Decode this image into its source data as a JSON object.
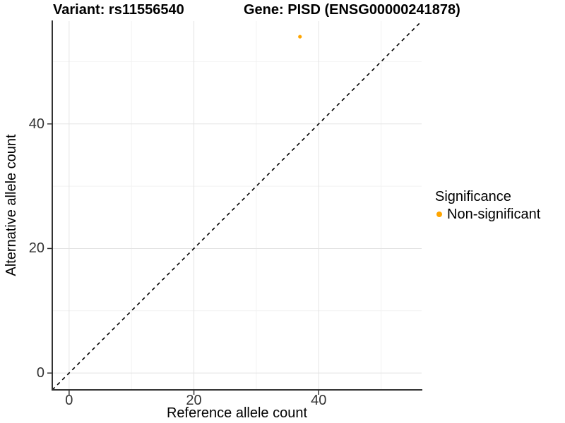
{
  "titles": {
    "left": "Variant: rs11556540",
    "right": "Gene: PISD (ENSG00000241878)"
  },
  "chart_data": {
    "type": "scatter",
    "xlabel": "Reference allele count",
    "ylabel": "Alternative allele count",
    "xlim": [
      -2.7,
      56.5
    ],
    "ylim": [
      -2.7,
      56.5
    ],
    "xticks": [
      0,
      20,
      40
    ],
    "yticks": [
      0,
      20,
      40
    ],
    "minor_xticks": [
      10,
      30,
      50
    ],
    "minor_yticks": [
      10,
      30,
      50
    ],
    "grid": "major+minor",
    "series": [
      {
        "name": "Non-significant",
        "color": "#FFA500",
        "points": [
          {
            "x": 37,
            "y": 54
          }
        ]
      }
    ],
    "reference_line": {
      "type": "identity",
      "style": "dashed",
      "color": "#000000"
    },
    "legend_position": "right"
  },
  "legend": {
    "title": "Significance",
    "items": [
      {
        "label": "Non-significant",
        "color": "#FFA500",
        "marker": "circle"
      }
    ]
  },
  "colors": {
    "axis": "#333333",
    "tick_text": "#333333",
    "grid_major": "#E4E4E4",
    "grid_minor": "#F2F2F2",
    "background": "#FFFFFF"
  }
}
